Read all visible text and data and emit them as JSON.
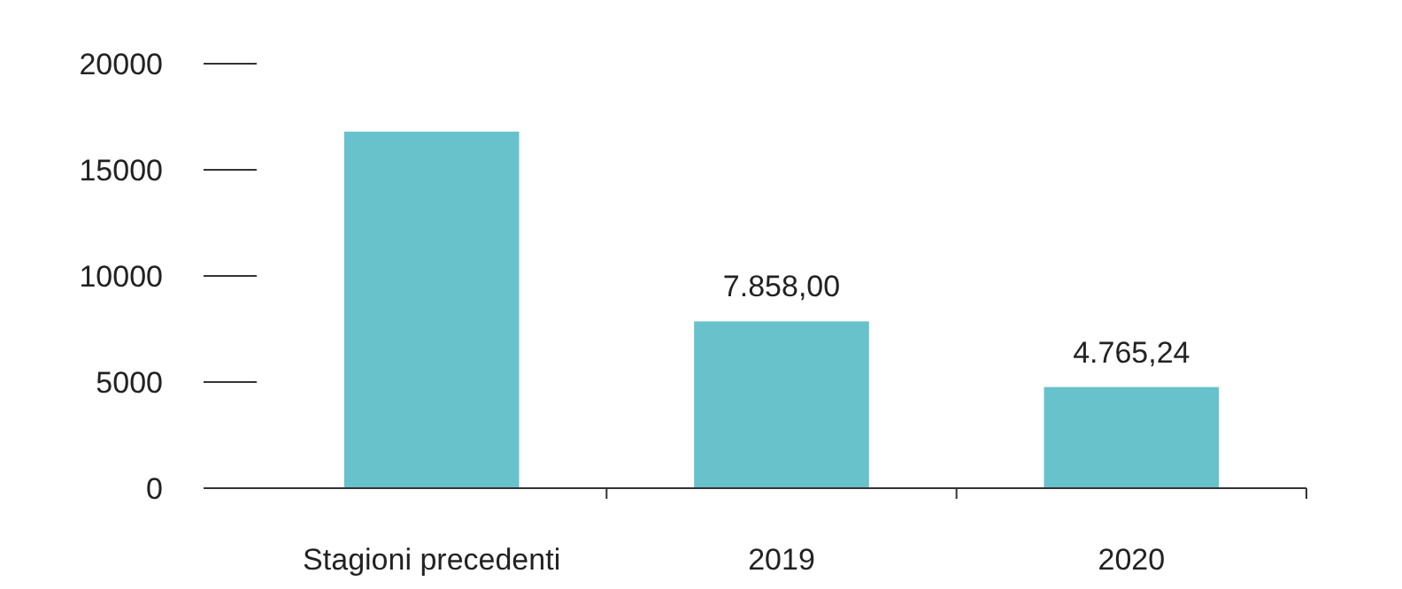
{
  "chart_data": {
    "type": "bar",
    "categories": [
      "Stagioni precedenti",
      "2019",
      "2020"
    ],
    "values": [
      16800,
      7858,
      4765.24
    ],
    "value_labels": [
      null,
      "7.858,00",
      "4.765,24"
    ],
    "color": "#67c2cc",
    "ylim": [
      0,
      20000
    ],
    "yticks": [
      0,
      5000,
      10000,
      15000,
      20000
    ],
    "grid": false
  }
}
